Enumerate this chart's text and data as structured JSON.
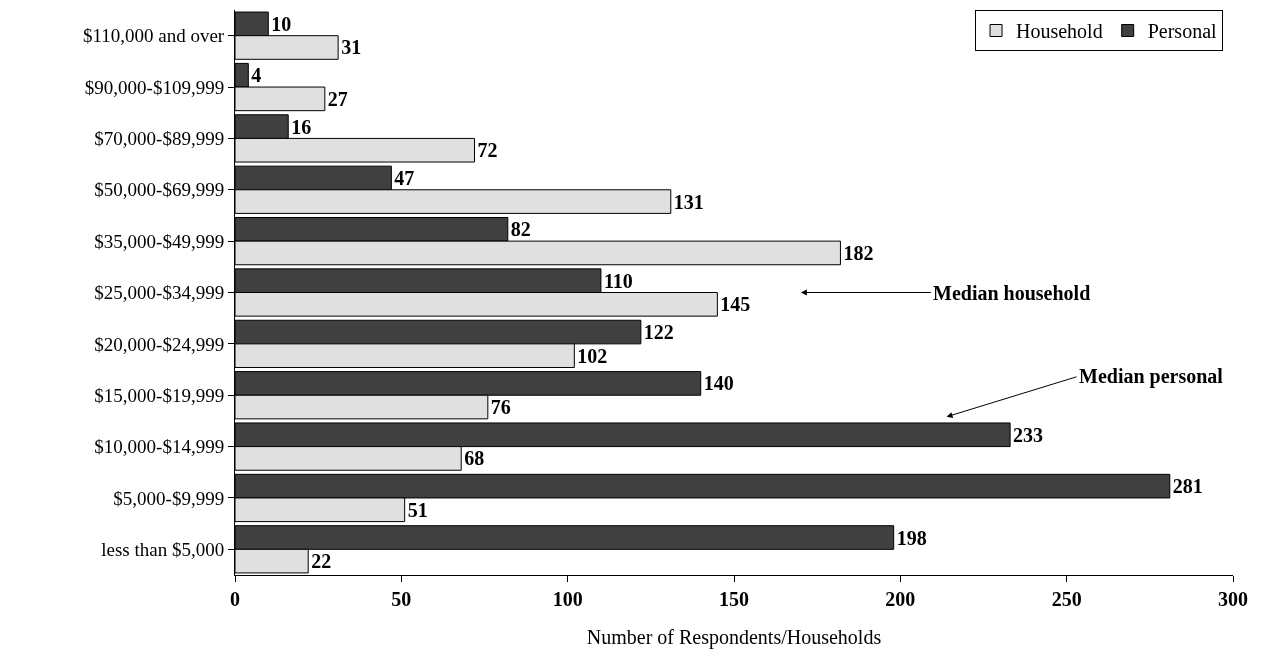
{
  "chart_data": {
    "type": "bar",
    "orientation": "horizontal",
    "xlabel": "Number of Respondents/Households",
    "categories": [
      "$110,000 and over",
      "$90,000-$109,999",
      "$70,000-$89,999",
      "$50,000-$69,999",
      "$35,000-$49,999",
      "$25,000-$34,999",
      "$20,000-$24,999",
      "$15,000-$19,999",
      "$10,000-$14,999",
      "$5,000-$9,999",
      "less than $5,000"
    ],
    "series": [
      {
        "name": "Household",
        "color": "#e0e0e0",
        "values": [
          31,
          27,
          72,
          131,
          182,
          145,
          102,
          76,
          68,
          51,
          22
        ]
      },
      {
        "name": "Personal",
        "color": "#404040",
        "values": [
          10,
          4,
          16,
          47,
          82,
          110,
          122,
          140,
          233,
          281,
          198
        ]
      }
    ],
    "xlim": [
      0,
      300
    ],
    "xticks": [
      0,
      50,
      100,
      150,
      200,
      250,
      300
    ],
    "legend": "top right",
    "data_labels": true,
    "annotations": [
      "Median household",
      "Median personal"
    ]
  }
}
